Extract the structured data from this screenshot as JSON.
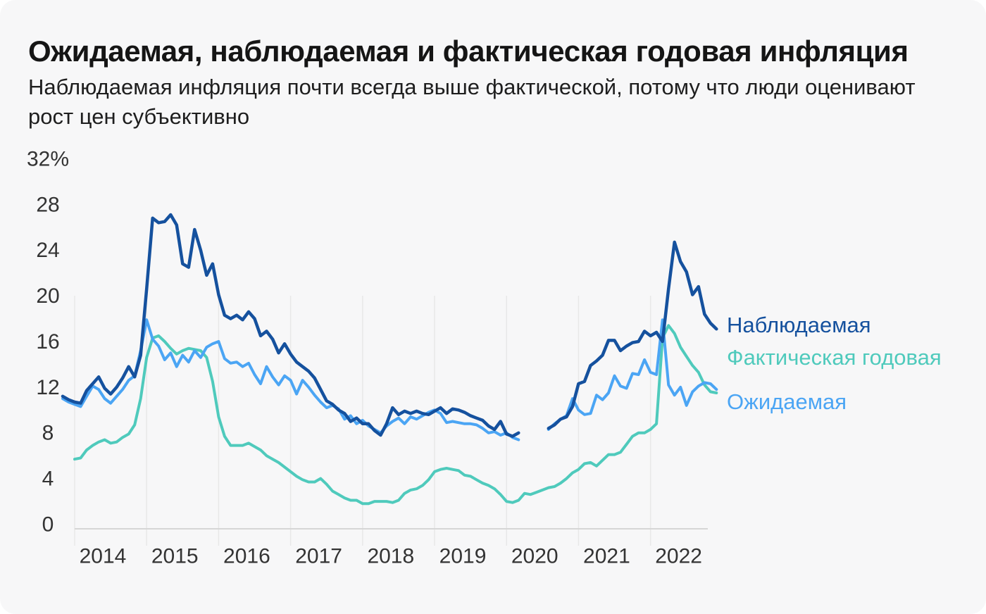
{
  "title": "Ожидаемая, наблюдаемая и фактическая годовая инфляция",
  "subtitle": "Наблюдаемая инфляция почти всегда выше фактической, потому что люди оценивают рост цен субъективно",
  "colors": {
    "card_background": "#f7f7f8",
    "page_background": "#ffffff",
    "gridline": "#e8e8e8",
    "axis_line": "#d6d6d6",
    "tick_text": "#333333",
    "title_text": "#151515",
    "observed_blue": "#15519e",
    "actual_teal": "#4fcabc",
    "expected_lightblue": "#4ba5f4"
  },
  "legend": {
    "items": [
      {
        "label": "Наблюдаемая",
        "color": "#15519e"
      },
      {
        "label": "Фактическая годовая",
        "color": "#4fcabc"
      },
      {
        "label": "Ожидаемая",
        "color": "#4ba5f4"
      }
    ]
  },
  "chart_data": {
    "type": "line",
    "unit": "%",
    "title": "Ожидаемая, наблюдаемая и фактическая годовая инфляция",
    "ylim": [
      0,
      32
    ],
    "grid": "vertical-only",
    "legend_position": "right-of-line-ends",
    "y_ticks": [
      {
        "value": 32,
        "label": "32%"
      },
      {
        "value": 28,
        "label": "28"
      },
      {
        "value": 24,
        "label": "24"
      },
      {
        "value": 20,
        "label": "20"
      },
      {
        "value": 16,
        "label": "16"
      },
      {
        "value": 12,
        "label": "12"
      },
      {
        "value": 8,
        "label": "8"
      },
      {
        "value": 4,
        "label": "4"
      },
      {
        "value": 0,
        "label": "0"
      }
    ],
    "x_years": [
      2014,
      2015,
      2016,
      2017,
      2018,
      2019,
      2020,
      2021,
      2022
    ],
    "note_gap": "survey series have no data for 2020-04..2020-07",
    "series": [
      {
        "name": "Наблюдаемая",
        "color": "#15519e",
        "width": 4.5,
        "z": 3,
        "start": "2013-11",
        "values": [
          11.6,
          11.3,
          11.1,
          11.0,
          12.1,
          12.7,
          13.3,
          12.3,
          11.8,
          12.4,
          13.2,
          14.2,
          13.3,
          15.2,
          21.0,
          27.2,
          26.8,
          26.9,
          27.5,
          26.6,
          23.2,
          22.9,
          26.2,
          24.4,
          22.2,
          23.2,
          20.5,
          18.7,
          18.4,
          18.7,
          18.3,
          19.0,
          18.4,
          16.9,
          17.3,
          16.6,
          15.4,
          16.2,
          15.3,
          14.6,
          14.2,
          13.8,
          13.2,
          12.2,
          11.2,
          10.9,
          10.4,
          10.1,
          9.4,
          9.7,
          9.2,
          9.2,
          8.6,
          8.2,
          9.2,
          10.6,
          10.0,
          10.3,
          10.1,
          10.3,
          10.1,
          10.0,
          10.3,
          10.6,
          10.1,
          10.5,
          10.4,
          10.2,
          9.9,
          9.7,
          9.5,
          9.0,
          8.7,
          9.4,
          8.3,
          8.1,
          8.4,
          null,
          null,
          null,
          null,
          8.8,
          9.1,
          9.6,
          9.8,
          10.7,
          12.7,
          12.9,
          14.3,
          14.7,
          15.2,
          16.5,
          16.5,
          15.6,
          16.0,
          16.3,
          16.4,
          17.3,
          16.9,
          17.2,
          16.4,
          21.0,
          25.1,
          23.4,
          22.5,
          20.5,
          21.2,
          18.8,
          18.0,
          17.5
        ]
      },
      {
        "name": "Фактическая годовая",
        "color": "#4fcabc",
        "width": 4,
        "z": 1,
        "start": "2014-01",
        "values": [
          6.1,
          6.2,
          6.9,
          7.3,
          7.6,
          7.8,
          7.5,
          7.6,
          8.0,
          8.3,
          9.1,
          11.4,
          15.0,
          16.7,
          16.9,
          16.4,
          15.8,
          15.3,
          15.6,
          15.8,
          15.7,
          15.6,
          15.0,
          12.9,
          9.8,
          8.1,
          7.3,
          7.3,
          7.3,
          7.5,
          7.2,
          6.9,
          6.4,
          6.1,
          5.8,
          5.4,
          5.0,
          4.6,
          4.3,
          4.1,
          4.1,
          4.4,
          3.9,
          3.3,
          3.0,
          2.7,
          2.5,
          2.5,
          2.2,
          2.2,
          2.4,
          2.4,
          2.4,
          2.3,
          2.5,
          3.1,
          3.4,
          3.5,
          3.8,
          4.3,
          5.0,
          5.2,
          5.3,
          5.2,
          5.1,
          4.7,
          4.6,
          4.3,
          4.0,
          3.8,
          3.5,
          3.0,
          2.4,
          2.3,
          2.5,
          3.1,
          3.0,
          3.2,
          3.4,
          3.6,
          3.7,
          4.0,
          4.4,
          4.9,
          5.2,
          5.7,
          5.8,
          5.5,
          6.0,
          6.5,
          6.5,
          6.7,
          7.4,
          8.1,
          8.4,
          8.4,
          8.7,
          9.2,
          16.7,
          17.8,
          17.1,
          15.9,
          15.1,
          14.3,
          13.7,
          12.6,
          12.0,
          11.9
        ]
      },
      {
        "name": "Ожидаемая",
        "color": "#4ba5f4",
        "width": 4,
        "z": 2,
        "start": "2013-11",
        "values": [
          11.4,
          11.1,
          10.9,
          10.7,
          11.6,
          12.5,
          12.2,
          11.4,
          11.0,
          11.6,
          12.2,
          13.0,
          13.4,
          15.6,
          18.3,
          16.6,
          16.0,
          14.8,
          15.4,
          14.2,
          15.2,
          14.6,
          15.6,
          15.0,
          15.9,
          16.2,
          16.4,
          14.9,
          14.5,
          14.6,
          14.2,
          14.5,
          13.5,
          12.7,
          14.2,
          13.3,
          12.6,
          13.4,
          13.0,
          11.8,
          13.0,
          12.4,
          11.7,
          11.1,
          10.6,
          10.8,
          10.5,
          9.6,
          9.9,
          9.2,
          9.5,
          9.0,
          8.7,
          8.4,
          9.0,
          9.4,
          9.7,
          9.2,
          9.8,
          9.6,
          9.9,
          10.2,
          10.4,
          10.1,
          9.3,
          9.4,
          9.3,
          9.2,
          9.2,
          9.1,
          8.8,
          8.4,
          8.5,
          8.2,
          8.4,
          8.0,
          7.8,
          null,
          null,
          null,
          null,
          8.7,
          9.2,
          9.6,
          9.9,
          11.4,
          10.4,
          10.0,
          10.1,
          11.7,
          11.3,
          11.9,
          13.4,
          12.5,
          12.3,
          13.6,
          13.5,
          14.8,
          13.7,
          13.5,
          18.3,
          12.6,
          11.7,
          12.4,
          10.8,
          12.0,
          12.5,
          12.8,
          12.7,
          12.2
        ]
      }
    ]
  }
}
